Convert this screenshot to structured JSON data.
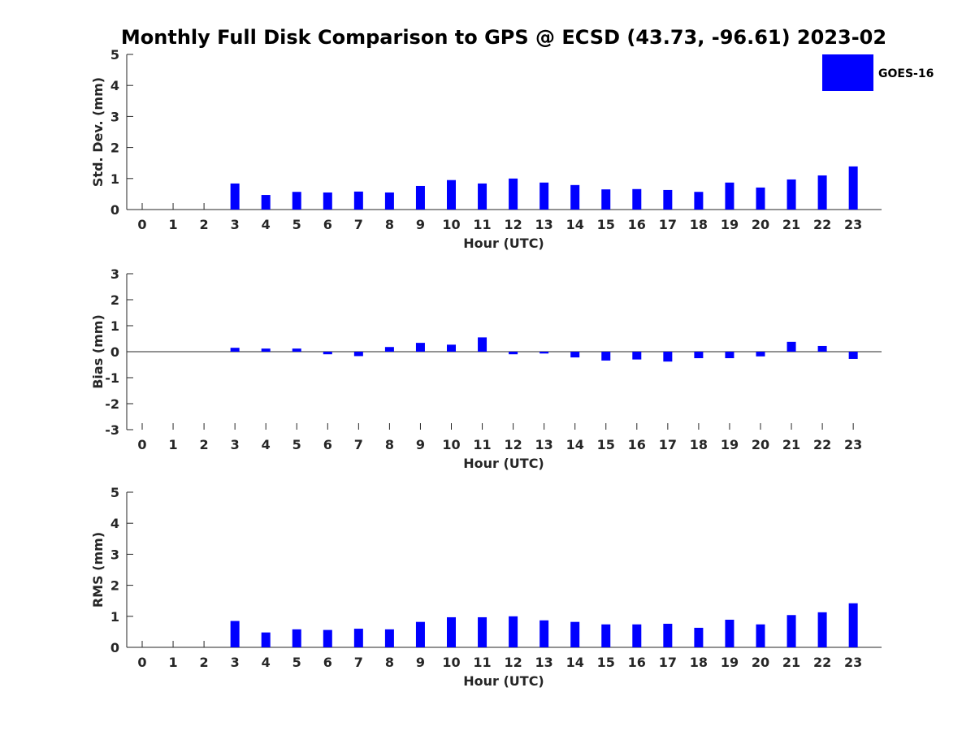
{
  "chart_data": {
    "type": "bar",
    "title": "Monthly Full Disk Comparison to GPS @ ECSD (43.73, -96.61) 2023-02",
    "legend": {
      "entries": [
        "GOES-16"
      ],
      "placement": "top-right"
    },
    "series_color": "#0000ff",
    "categories": [
      "0",
      "1",
      "2",
      "3",
      "4",
      "5",
      "6",
      "7",
      "8",
      "9",
      "10",
      "11",
      "12",
      "13",
      "14",
      "15",
      "16",
      "17",
      "18",
      "19",
      "20",
      "21",
      "22",
      "23"
    ],
    "panels": [
      {
        "ylabel": "Std. Dev. (mm)",
        "xlabel": "Hour (UTC)",
        "ylim": [
          0,
          5
        ],
        "yticks": [
          0,
          1,
          2,
          3,
          4,
          5
        ],
        "series": [
          {
            "name": "GOES-16",
            "values": [
              null,
              null,
              null,
              0.84,
              0.47,
              0.57,
              0.55,
              0.58,
              0.55,
              0.76,
              0.95,
              0.84,
              1.0,
              0.87,
              0.79,
              0.65,
              0.66,
              0.63,
              0.57,
              0.87,
              0.71,
              0.97,
              1.1,
              1.39
            ]
          }
        ]
      },
      {
        "ylabel": "Bias (mm)",
        "xlabel": "Hour (UTC)",
        "ylim": [
          -3,
          3
        ],
        "yticks": [
          -3,
          -2,
          -1,
          0,
          1,
          2,
          3
        ],
        "series": [
          {
            "name": "GOES-16",
            "values": [
              null,
              null,
              null,
              0.15,
              0.12,
              0.12,
              -0.1,
              -0.17,
              0.18,
              0.34,
              0.27,
              0.55,
              -0.1,
              -0.07,
              -0.22,
              -0.34,
              -0.3,
              -0.38,
              -0.25,
              -0.25,
              -0.18,
              0.38,
              0.22,
              -0.28
            ]
          }
        ]
      },
      {
        "ylabel": "RMS (mm)",
        "xlabel": "Hour (UTC)",
        "ylim": [
          0,
          5
        ],
        "yticks": [
          0,
          1,
          2,
          3,
          4,
          5
        ],
        "series": [
          {
            "name": "GOES-16",
            "values": [
              null,
              null,
              null,
              0.85,
              0.48,
              0.58,
              0.56,
              0.6,
              0.58,
              0.82,
              0.97,
              0.97,
              1.0,
              0.87,
              0.82,
              0.74,
              0.74,
              0.76,
              0.63,
              0.89,
              0.74,
              1.04,
              1.13,
              1.42
            ]
          }
        ]
      }
    ]
  }
}
